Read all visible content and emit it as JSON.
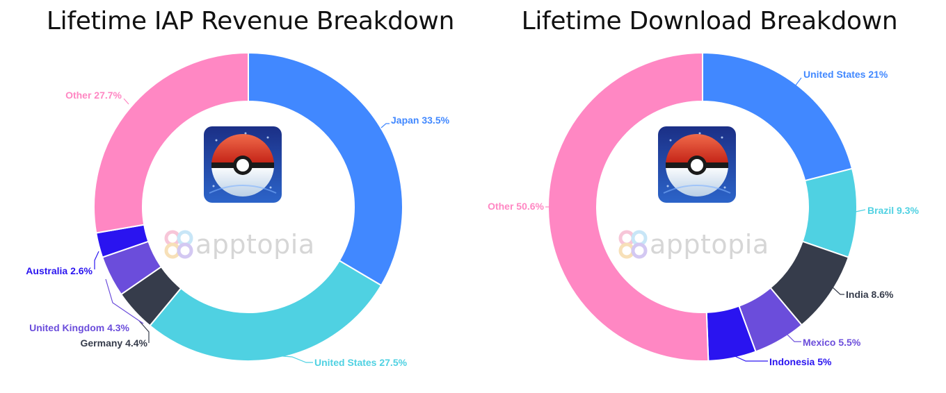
{
  "colors": {
    "pink": "#ff87c3",
    "blue": "#4188ff",
    "cyan": "#4fd1e2",
    "dark": "#363c4b",
    "purple": "#6b4ddb",
    "indigo": "#2a14f0",
    "brand_gray": "#d6d6d6"
  },
  "brand": {
    "name": "apptopia"
  },
  "chart_data": [
    {
      "type": "pie",
      "title": "Lifetime IAP Revenue Breakdown",
      "categories": [
        "Japan",
        "United States",
        "Germany",
        "United Kingdom",
        "Australia",
        "Other"
      ],
      "values": [
        33.5,
        27.5,
        4.4,
        4.3,
        2.6,
        27.7
      ],
      "labels": [
        "Japan 33.5%",
        "United States 27.5%",
        "Germany 4.4%",
        "United Kingdom 4.3%",
        "Australia 2.6%",
        "Other 27.7%"
      ],
      "colors": [
        "#4188ff",
        "#4fd1e2",
        "#363c4b",
        "#6b4ddb",
        "#2a14f0",
        "#ff87c3"
      ],
      "label_colors": [
        "#4188ff",
        "#4fd1e2",
        "#363c4b",
        "#6b4ddb",
        "#2a14f0",
        "#ff87c3"
      ],
      "donut": true
    },
    {
      "type": "pie",
      "title": "Lifetime Download Breakdown",
      "categories": [
        "United States",
        "Brazil",
        "India",
        "Mexico",
        "Indonesia",
        "Other"
      ],
      "values": [
        21,
        9.3,
        8.6,
        5.5,
        5,
        50.6
      ],
      "labels": [
        "United States 21%",
        "Brazil 9.3%",
        "India 8.6%",
        "Mexico 5.5%",
        "Indonesia 5%",
        "Other 50.6%"
      ],
      "colors": [
        "#4188ff",
        "#4fd1e2",
        "#363c4b",
        "#6b4ddb",
        "#2a14f0",
        "#ff87c3"
      ],
      "label_colors": [
        "#4188ff",
        "#4fd1e2",
        "#363c4b",
        "#6b4ddb",
        "#2a14f0",
        "#ff87c3"
      ],
      "donut": true
    }
  ]
}
